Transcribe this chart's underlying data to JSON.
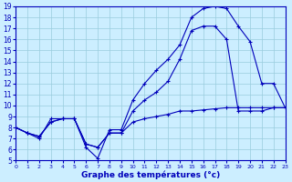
{
  "xlabel": "Graphe des températures (°c)",
  "bg_color": "#cceeff",
  "line_color": "#0000bb",
  "grid_color": "#99ccdd",
  "ylim": [
    5,
    19
  ],
  "xlim": [
    0,
    23
  ],
  "yticks": [
    5,
    6,
    7,
    8,
    9,
    10,
    11,
    12,
    13,
    14,
    15,
    16,
    17,
    18,
    19
  ],
  "xticks": [
    0,
    1,
    2,
    3,
    4,
    5,
    6,
    7,
    8,
    9,
    10,
    11,
    12,
    13,
    14,
    15,
    16,
    17,
    18,
    19,
    20,
    21,
    22,
    23
  ],
  "line1_y": [
    8.0,
    7.5,
    7.0,
    8.8,
    8.8,
    8.8,
    6.2,
    5.2,
    7.8,
    7.8,
    10.5,
    12.0,
    13.2,
    14.2,
    15.5,
    18.0,
    18.8,
    19.0,
    18.8,
    17.2,
    15.8,
    12.0,
    12.0,
    9.8
  ],
  "line2_y": [
    8.0,
    7.5,
    7.2,
    8.5,
    8.8,
    8.8,
    6.5,
    6.2,
    7.5,
    7.5,
    9.5,
    10.5,
    11.2,
    12.2,
    14.2,
    16.8,
    17.2,
    17.2,
    16.0,
    9.5,
    9.5,
    9.5,
    9.8,
    9.8
  ],
  "line3_y": [
    8.0,
    7.5,
    7.2,
    8.5,
    8.8,
    8.8,
    6.5,
    6.2,
    7.5,
    7.5,
    8.5,
    8.8,
    9.0,
    9.2,
    9.5,
    9.5,
    9.6,
    9.7,
    9.8,
    9.8,
    9.8,
    9.8,
    9.8,
    9.8
  ]
}
